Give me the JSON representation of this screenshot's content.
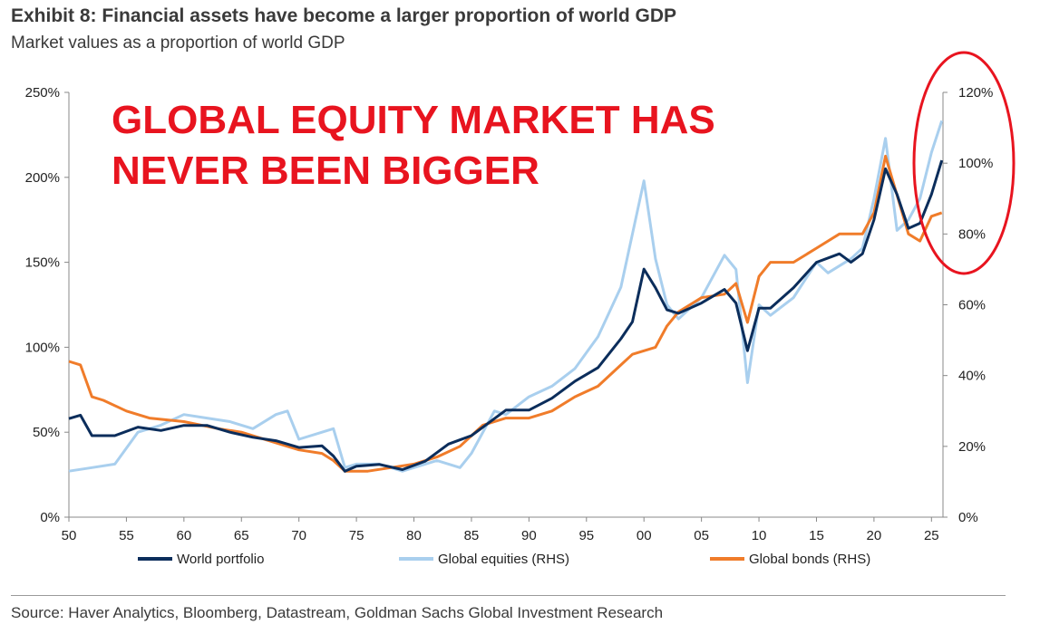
{
  "title": "Exhibit 8: Financial assets have become a larger proportion of world GDP",
  "subtitle": "Market values as a proportion of world GDP",
  "source": "Source: Haver Analytics, Bloomberg, Datastream, Goldman Sachs Global Investment Research",
  "colors": {
    "world_portfolio": "#0b2d5b",
    "global_equities": "#a9cfee",
    "global_bonds": "#f07c2a",
    "annotation": "#e8141f"
  },
  "chart_data": {
    "type": "line",
    "annotation": [
      "GLOBAL EQUITY MARKET HAS",
      "NEVER BEEN BIGGER"
    ],
    "highlight": "red ellipse around 2020–2025 values on the right axis",
    "xlim": [
      1950,
      2026
    ],
    "x_ticks": [
      1950,
      1955,
      1960,
      1965,
      1970,
      1975,
      1980,
      1985,
      1990,
      1995,
      2000,
      2005,
      2010,
      2015,
      2020,
      2025
    ],
    "x_tick_labels": [
      "50",
      "55",
      "60",
      "65",
      "70",
      "75",
      "80",
      "85",
      "90",
      "95",
      "00",
      "05",
      "10",
      "15",
      "20",
      "25"
    ],
    "y_left": {
      "lim": [
        0,
        250
      ],
      "ticks": [
        0,
        50,
        100,
        150,
        200,
        250
      ],
      "tick_labels": [
        "0%",
        "50%",
        "100%",
        "150%",
        "200%",
        "250%"
      ]
    },
    "y_right": {
      "lim": [
        0,
        120
      ],
      "ticks": [
        0,
        20,
        40,
        60,
        80,
        100,
        120
      ],
      "tick_labels": [
        "0%",
        "20%",
        "40%",
        "60%",
        "80%",
        "100%",
        "120%"
      ]
    },
    "grid": false,
    "legend_position": "bottom",
    "series": [
      {
        "name": "World portfolio",
        "axis": "left",
        "x": [
          1950,
          1951,
          1952,
          1954,
          1956,
          1958,
          1960,
          1962,
          1964,
          1966,
          1968,
          1970,
          1972,
          1973,
          1974,
          1975,
          1977,
          1979,
          1981,
          1983,
          1985,
          1987,
          1988,
          1990,
          1992,
          1994,
          1996,
          1998,
          1999,
          2000,
          2001,
          2002,
          2003,
          2005,
          2007,
          2008,
          2009,
          2010,
          2011,
          2013,
          2015,
          2017,
          2018,
          2019,
          2020,
          2021,
          2022,
          2023,
          2024,
          2025,
          2025.9
        ],
        "y": [
          58,
          60,
          48,
          48,
          53,
          51,
          54,
          54,
          50,
          47,
          45,
          41,
          42,
          36,
          27,
          30,
          31,
          28,
          33,
          43,
          48,
          58,
          63,
          63,
          70,
          80,
          88,
          105,
          115,
          146,
          135,
          122,
          120,
          126,
          134,
          126,
          98,
          123,
          123,
          135,
          150,
          155,
          150,
          155,
          175,
          205,
          190,
          170,
          173,
          190,
          210
        ]
      },
      {
        "name": "Global equities (RHS)",
        "axis": "right",
        "x": [
          1950,
          1952,
          1954,
          1956,
          1958,
          1960,
          1962,
          1964,
          1966,
          1968,
          1969,
          1970,
          1972,
          1973,
          1974,
          1975,
          1977,
          1979,
          1980,
          1982,
          1984,
          1985,
          1987,
          1988,
          1990,
          1992,
          1994,
          1996,
          1998,
          1999,
          2000,
          2001,
          2002,
          2003,
          2005,
          2007,
          2008,
          2009,
          2010,
          2011,
          2013,
          2015,
          2016,
          2018,
          2019,
          2020,
          2021,
          2022,
          2023,
          2024,
          2025,
          2025.9
        ],
        "y": [
          13,
          14,
          15,
          24,
          26,
          29,
          28,
          27,
          25,
          29,
          30,
          22,
          24,
          25,
          14,
          15,
          15,
          13,
          14,
          16,
          14,
          18,
          30,
          29,
          34,
          37,
          42,
          51,
          65,
          80,
          95,
          73,
          60,
          56,
          62,
          74,
          70,
          38,
          60,
          57,
          62,
          72,
          69,
          73,
          76,
          90,
          107,
          81,
          84,
          90,
          103,
          112
        ]
      },
      {
        "name": "Global bonds (RHS)",
        "axis": "right",
        "x": [
          1950,
          1951,
          1952,
          1953,
          1955,
          1957,
          1960,
          1963,
          1965,
          1968,
          1970,
          1972,
          1973,
          1974,
          1976,
          1978,
          1980,
          1982,
          1984,
          1986,
          1988,
          1990,
          1992,
          1994,
          1996,
          1998,
          1999,
          2000,
          2001,
          2002,
          2003,
          2005,
          2007,
          2008,
          2009,
          2010,
          2011,
          2013,
          2015,
          2017,
          2018,
          2019,
          2020,
          2021,
          2022,
          2023,
          2024,
          2025,
          2025.9
        ],
        "y": [
          44,
          43,
          34,
          33,
          30,
          28,
          27,
          25,
          24,
          21,
          19,
          18,
          16,
          13,
          13,
          14,
          15,
          17,
          20,
          26,
          28,
          28,
          30,
          34,
          37,
          43,
          46,
          47,
          48,
          54,
          58,
          62,
          63,
          66,
          55,
          68,
          72,
          72,
          76,
          80,
          80,
          80,
          86,
          102,
          91,
          80,
          78,
          85,
          86
        ]
      }
    ]
  }
}
